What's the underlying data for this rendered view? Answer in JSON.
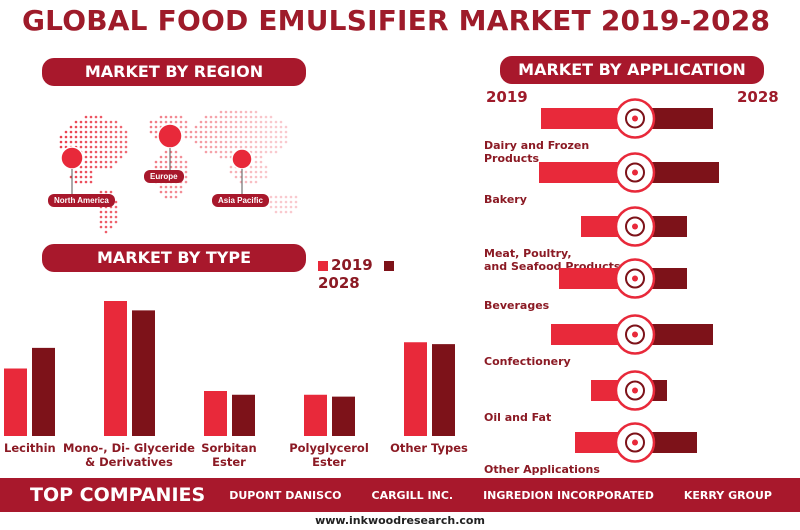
{
  "title": "GLOBAL FOOD EMULSIFIER MARKET  2019-2028",
  "region": {
    "heading": "MARKET BY REGION",
    "labels": [
      "North America",
      "Europe",
      "Asia Pacific"
    ]
  },
  "type_section": {
    "heading": "MARKET BY TYPE",
    "legend": [
      "2019",
      "2028"
    ]
  },
  "application_section": {
    "heading": "MARKET BY APPLICATION",
    "year_start": "2019",
    "year_end": "2028",
    "icons": [
      "milk-icon",
      "bread-icon",
      "meat-icon",
      "beverage-icon",
      "cake-icon",
      "oil-icon",
      "grocery-icon"
    ]
  },
  "colors": {
    "y2019": "#e8293a",
    "y2028": "#7d1219",
    "brand": "#a8182c"
  },
  "chart_data": [
    {
      "type": "bar",
      "title": "MARKET BY TYPE",
      "categories": [
        "Lecithin",
        "Mono-, Di- Glyceride & Derivatives",
        "Sorbitan Ester",
        "Polyglycerol Ester",
        "Other Types"
      ],
      "category_lines": [
        [
          "Lecithin"
        ],
        [
          "Mono-, Di- Glyceride",
          "& Derivatives"
        ],
        [
          "Sorbitan",
          "Ester"
        ],
        [
          "Polyglycerol",
          "Ester"
        ],
        [
          "Other Types"
        ]
      ],
      "series": [
        {
          "name": "2019",
          "values": [
            36,
            72,
            24,
            22,
            50
          ]
        },
        {
          "name": "2028",
          "values": [
            47,
            67,
            22,
            21,
            49
          ]
        }
      ],
      "ylim": [
        0,
        80
      ],
      "legend": "top-right"
    },
    {
      "type": "bar",
      "title": "MARKET BY APPLICATION",
      "orientation": "horizontal",
      "categories": [
        "Dairy and Frozen Products",
        "Bakery",
        "Meat, Poultry, and Seafood Products",
        "Beverages",
        "Confectionery",
        "Oil and Fat",
        "Other Applications"
      ],
      "category_lines": [
        [
          "Dairy and Frozen",
          "Products"
        ],
        [
          "Bakery"
        ],
        [
          "Meat, Poultry,",
          "and Seafood Products"
        ],
        [
          "Beverages"
        ],
        [
          "Confectionery"
        ],
        [
          "Oil and Fat"
        ],
        [
          "Other Applications"
        ]
      ],
      "series": [
        {
          "name": "2019",
          "values": [
            47,
            48,
            27,
            38,
            42,
            22,
            30
          ]
        },
        {
          "name": "2028",
          "values": [
            39,
            42,
            26,
            26,
            39,
            16,
            31
          ]
        }
      ]
    }
  ],
  "footer": {
    "heading": "TOP COMPANIES",
    "companies": [
      "DUPONT DANISCO",
      "CARGILL INC.",
      "INGREDION INCORPORATED",
      "KERRY GROUP"
    ],
    "url": "www.inkwoodresearch.com"
  }
}
